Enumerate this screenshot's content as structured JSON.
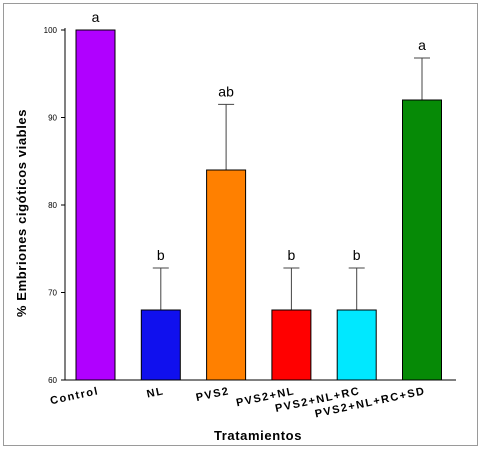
{
  "chart_data": {
    "type": "bar",
    "title": "",
    "xlabel": "Tratamientos",
    "ylabel": "% Embriones cigóticos viables",
    "ylim": [
      60,
      100
    ],
    "yticks": [
      "60",
      "70",
      "80",
      "90",
      "100"
    ],
    "grid": false,
    "categories": [
      "Control",
      "NL",
      "PVS2",
      "PVS2+NL",
      "PVS2+NL+RC",
      "PVS2+NL+RC+SD"
    ],
    "values": [
      100,
      68,
      84,
      68,
      68,
      92
    ],
    "error_upper": [
      100,
      72.8,
      91.5,
      72.8,
      72.8,
      96.8
    ],
    "significance_letters": [
      "a",
      "b",
      "ab",
      "b",
      "b",
      "a"
    ],
    "bar_colors": [
      "#b000ff",
      "#1010ee",
      "#ff8000",
      "#ff0000",
      "#00e8ff",
      "#068a06"
    ]
  }
}
